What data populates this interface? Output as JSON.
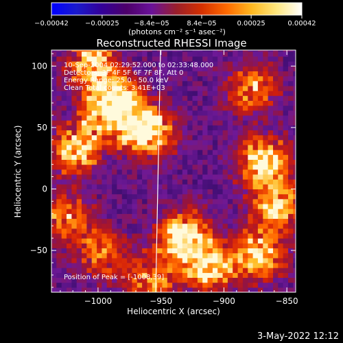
{
  "chart_data": {
    "type": "heatmap",
    "title": "Reconstructed RHESSI Image",
    "xlabel": "Heliocentric X (arcsec)",
    "ylabel": "Heliocentric Y (arcsec)",
    "xlim": [
      -1037,
      -843
    ],
    "ylim": [
      -84,
      113
    ],
    "x_ticks": [
      {
        "value": -1000,
        "label": "−1000"
      },
      {
        "value": -950,
        "label": "−950"
      },
      {
        "value": -900,
        "label": "−900"
      },
      {
        "value": -850,
        "label": "−850"
      }
    ],
    "y_ticks": [
      {
        "value": 100,
        "label": "100"
      },
      {
        "value": 50,
        "label": "50"
      },
      {
        "value": 0,
        "label": "0"
      },
      {
        "value": -50,
        "label": "−50"
      }
    ],
    "colorbar": {
      "range": [
        -0.00042,
        0.00042
      ],
      "ticks": [
        {
          "value": -0.00042,
          "label": "−0.00042"
        },
        {
          "value": -0.00025,
          "label": "−0.00025"
        },
        {
          "value": -8.4e-05,
          "label": "−8.4e−05"
        },
        {
          "value": 8.4e-05,
          "label": "8.4e−05"
        },
        {
          "value": 0.00025,
          "label": "0.00025"
        },
        {
          "value": 0.00042,
          "label": "0.00042"
        }
      ],
      "unit": "(photons cm⁻² s⁻¹ asec⁻²)",
      "colors": [
        "#0000ff",
        "#1a1acc",
        "#330099",
        "#4d006a",
        "#6a1299",
        "#9a1f2a",
        "#d43000",
        "#ff6a00",
        "#ffb820",
        "#ffe880",
        "#ffffff"
      ]
    },
    "annotations": [
      "10-Sep-2004 02:29:52.000 to 02:33:48.000",
      "Detectors: 3F 4F 5F 6F 7F 8F, Att 0",
      "Energy Range: 25.0 - 50.0 keV",
      "Clean     Total counts: 3.41E+03"
    ],
    "peak_label": "Position of Peak = [-1008,39]",
    "limb_line_x": -952,
    "grid": false,
    "bright_regions": [
      {
        "x": -990,
        "y": 65,
        "level": 0.95
      },
      {
        "x": -962,
        "y": 45,
        "level": 0.9
      },
      {
        "x": -1005,
        "y": 100,
        "level": 0.8
      },
      {
        "x": -1020,
        "y": 30,
        "level": 0.75
      },
      {
        "x": -1028,
        "y": -25,
        "level": 0.55
      },
      {
        "x": -870,
        "y": 20,
        "level": 0.9
      },
      {
        "x": -880,
        "y": 80,
        "level": 0.6
      },
      {
        "x": -860,
        "y": -15,
        "level": 0.7
      },
      {
        "x": -935,
        "y": -40,
        "level": 0.85
      },
      {
        "x": -915,
        "y": -65,
        "level": 0.8
      },
      {
        "x": -875,
        "y": -55,
        "level": 0.75
      },
      {
        "x": -960,
        "y": -75,
        "level": 0.55
      },
      {
        "x": -1000,
        "y": -55,
        "level": 0.5
      }
    ]
  },
  "footer_timestamp": "3-May-2022 12:12"
}
